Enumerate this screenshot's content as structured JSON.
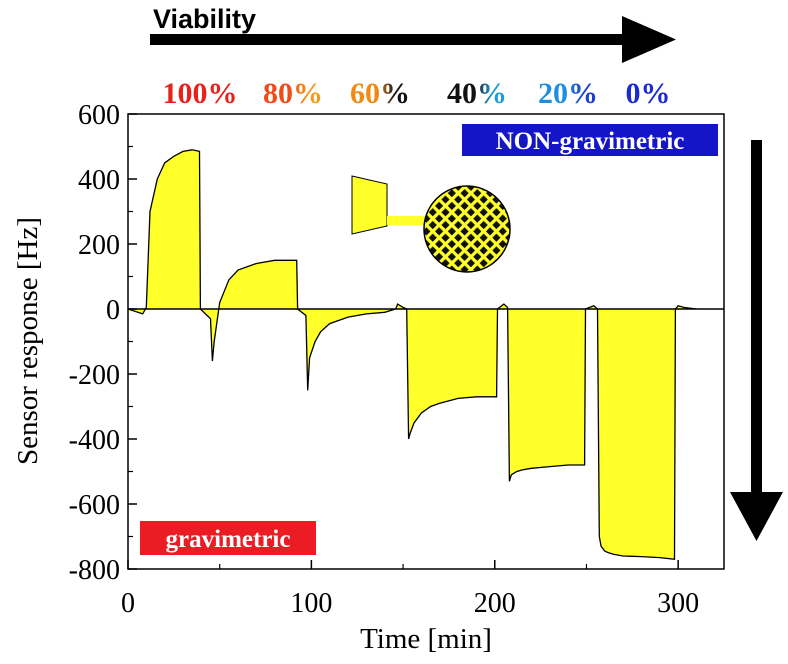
{
  "header": {
    "title": "Viability",
    "viability_labels": [
      {
        "text": "100%",
        "color": "#e8221b"
      },
      {
        "text": "80%",
        "color": "#f04a18",
        "color2": "#f59a1a"
      },
      {
        "text": "60%",
        "color": "#f08a14",
        "color2": "#111111"
      },
      {
        "text": "40%",
        "color": "#111111",
        "color2": "#1e9ad6"
      },
      {
        "text": "20%",
        "color": "#1e8ee0",
        "color2": "#1a3fd0"
      },
      {
        "text": "0%",
        "color": "#1a2bd0"
      }
    ]
  },
  "badges": {
    "non_gravimetric": {
      "text": "NON-gravimetric",
      "color": "#1414c8"
    },
    "gravimetric": {
      "text": "gravimetric",
      "color": "#ec1c24"
    }
  },
  "chart_data": {
    "type": "area",
    "title": "",
    "xlabel": "Time [min]",
    "ylabel": "Sensor response [Hz]",
    "xlim": [
      0,
      325
    ],
    "ylim": [
      -800,
      600
    ],
    "xticks": [
      "0",
      "100",
      "200",
      "300"
    ],
    "yticks": [
      "600",
      "400",
      "200",
      "0",
      "-200",
      "-400",
      "-600",
      "-800"
    ],
    "fill_color": "#ffff2a",
    "series": [
      {
        "x": [
          0,
          8,
          10,
          12,
          16,
          20,
          25,
          30,
          35,
          39,
          39.5,
          45,
          46,
          47,
          50,
          55,
          60,
          70,
          80,
          90,
          92,
          92.5,
          97,
          98,
          99,
          102,
          105,
          110,
          120,
          130,
          140,
          146,
          147,
          150,
          152,
          153,
          154,
          156,
          160,
          165,
          170,
          180,
          190,
          201,
          201.5,
          205,
          207,
          208,
          209,
          212,
          215,
          220,
          230,
          240,
          249,
          249.5,
          254,
          256,
          257,
          258,
          260,
          262,
          265,
          270,
          280,
          290,
          298,
          298.5,
          300,
          303,
          310
        ],
        "y": [
          0,
          -15,
          5,
          300,
          400,
          450,
          470,
          485,
          490,
          485,
          0,
          -30,
          -160,
          -100,
          20,
          90,
          120,
          140,
          150,
          150,
          150,
          0,
          -20,
          -250,
          -150,
          -100,
          -70,
          -45,
          -25,
          -15,
          -10,
          0,
          15,
          5,
          0,
          -400,
          -380,
          -350,
          -320,
          -300,
          -290,
          -275,
          -270,
          -270,
          0,
          15,
          5,
          -530,
          -510,
          -500,
          -495,
          -490,
          -485,
          -480,
          -480,
          0,
          10,
          0,
          -700,
          -730,
          -745,
          -750,
          -755,
          -760,
          -762,
          -765,
          -770,
          0,
          10,
          5,
          0
        ]
      }
    ]
  },
  "inset": {
    "icon": "sensor-electrode-icon"
  },
  "arrows": {
    "horizontal": "right-arrow-icon",
    "vertical": "down-arrow-icon"
  }
}
